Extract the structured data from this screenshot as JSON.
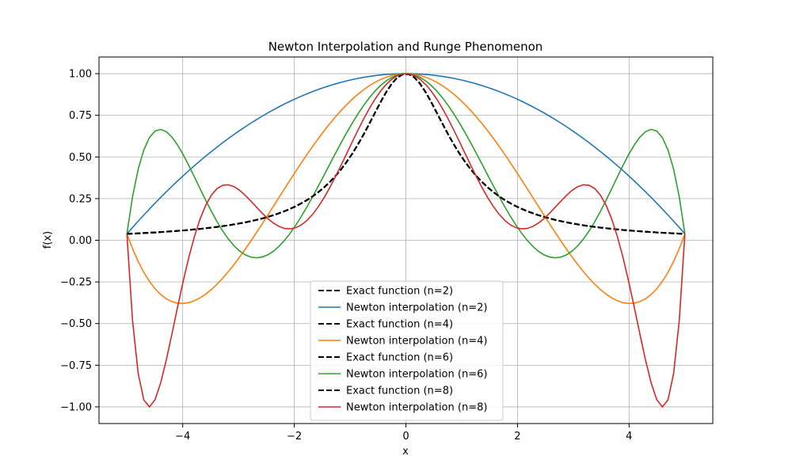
{
  "chart_data": {
    "type": "line",
    "title": "Newton Interpolation and Runge Phenomenon",
    "xlabel": "x",
    "ylabel": "f(x)",
    "xlim": [
      -5.5,
      5.5
    ],
    "ylim": [
      -1.1,
      1.1
    ],
    "xticks": [
      -4,
      -2,
      0,
      2,
      4
    ],
    "xtick_labels": [
      "−4",
      "−2",
      "0",
      "2",
      "4"
    ],
    "yticks": [
      -1.0,
      -0.75,
      -0.5,
      -0.25,
      0.0,
      0.25,
      0.5,
      0.75,
      1.0
    ],
    "ytick_labels": [
      "−1.00",
      "−0.75",
      "−0.50",
      "−0.25",
      "0.00",
      "0.25",
      "0.50",
      "0.75",
      "1.00"
    ],
    "grid": true,
    "legend_position": "bottom-center",
    "function": "1/(1+x^2)",
    "domain": [
      -5,
      5
    ],
    "series": [
      {
        "name": "Exact function (n=2)",
        "kind": "exact",
        "color": "#000000",
        "dash": true
      },
      {
        "name": "Newton interpolation (n=2)",
        "kind": "newton",
        "n": 2,
        "color": "#1f77b4",
        "dash": false
      },
      {
        "name": "Exact function (n=4)",
        "kind": "exact",
        "color": "#000000",
        "dash": true
      },
      {
        "name": "Newton interpolation (n=4)",
        "kind": "newton",
        "n": 4,
        "color": "#ff7f0e",
        "dash": false
      },
      {
        "name": "Exact function (n=6)",
        "kind": "exact",
        "color": "#000000",
        "dash": true
      },
      {
        "name": "Newton interpolation (n=6)",
        "kind": "newton",
        "n": 6,
        "color": "#2ca02c",
        "dash": false
      },
      {
        "name": "Exact function (n=8)",
        "kind": "exact",
        "color": "#000000",
        "dash": true
      },
      {
        "name": "Newton interpolation (n=8)",
        "kind": "newton",
        "n": 8,
        "color": "#d62728",
        "dash": false
      }
    ]
  }
}
